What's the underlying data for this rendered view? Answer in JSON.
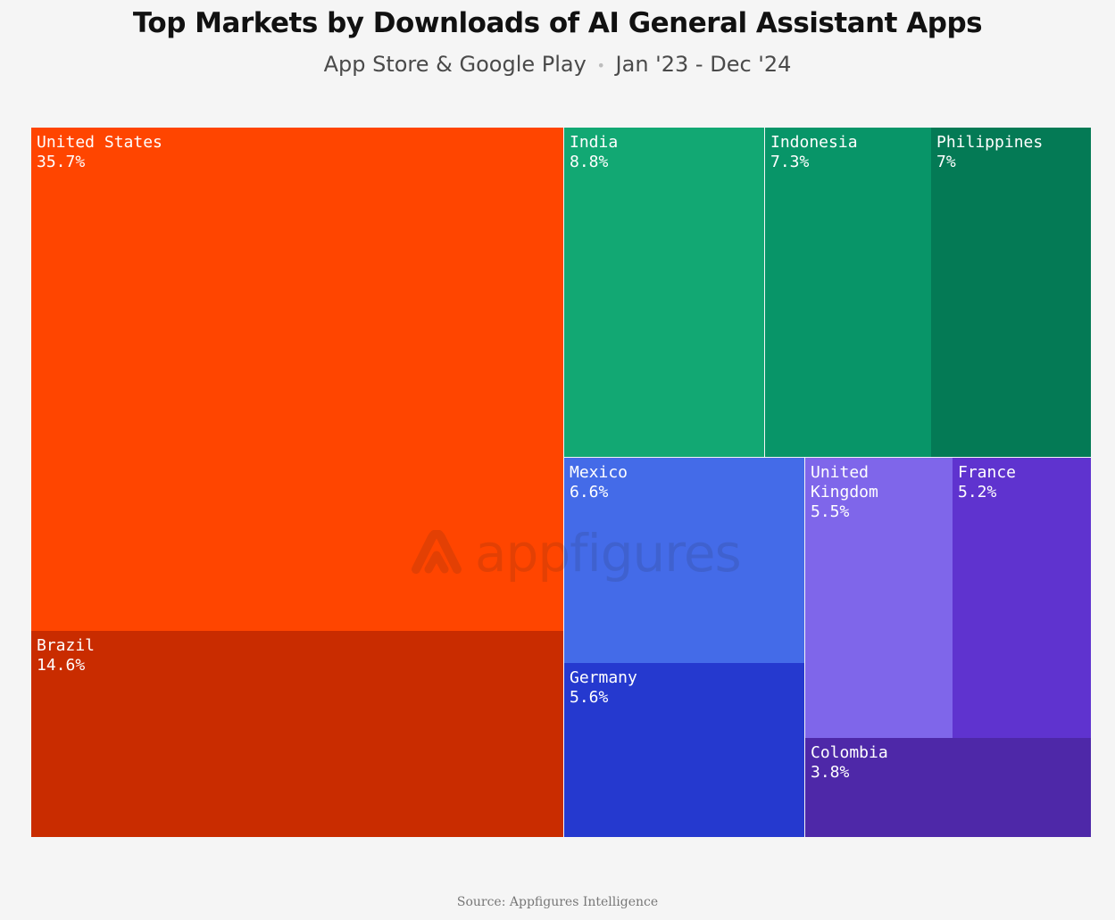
{
  "title": "Top Markets by Downloads of AI General Assistant Apps",
  "subtitle": {
    "stores": "App Store & Google Play",
    "separator": "•",
    "period": "Jan '23 - Dec '24"
  },
  "watermark": {
    "text": "appfigures",
    "icon": "appfigures-logo-icon"
  },
  "source": "Source: Appfigures Intelligence",
  "chart_data": {
    "type": "treemap",
    "title": "Top Markets by Downloads of AI General Assistant Apps",
    "subtitle": "App Store & Google Play • Jan '23 - Dec '24",
    "unit": "%",
    "items": [
      {
        "name": "United States",
        "label": "United States",
        "value": 35.7,
        "display": "35.7%",
        "color": "#ff4500"
      },
      {
        "name": "Brazil",
        "label": "Brazil",
        "value": 14.6,
        "display": "14.6%",
        "color": "#c92c00"
      },
      {
        "name": "India",
        "label": "India",
        "value": 8.8,
        "display": "8.8%",
        "color": "#12a873"
      },
      {
        "name": "Indonesia",
        "label": "Indonesia",
        "value": 7.3,
        "display": "7.3%",
        "color": "#089568"
      },
      {
        "name": "Philippines",
        "label": "Philippines",
        "value": 7.0,
        "display": "7%",
        "color": "#047a55"
      },
      {
        "name": "Mexico",
        "label": "Mexico",
        "value": 6.6,
        "display": "6.6%",
        "color": "#446be8"
      },
      {
        "name": "Germany",
        "label": "Germany",
        "value": 5.6,
        "display": "5.6%",
        "color": "#2539cf"
      },
      {
        "name": "United Kingdom",
        "label": "United\nKingdom",
        "value": 5.5,
        "display": "5.5%",
        "color": "#7f66ea"
      },
      {
        "name": "France",
        "label": "France",
        "value": 5.2,
        "display": "5.2%",
        "color": "#5f33cf"
      },
      {
        "name": "Colombia",
        "label": "Colombia",
        "value": 3.8,
        "display": "3.8%",
        "color": "#4e28a8"
      }
    ]
  }
}
